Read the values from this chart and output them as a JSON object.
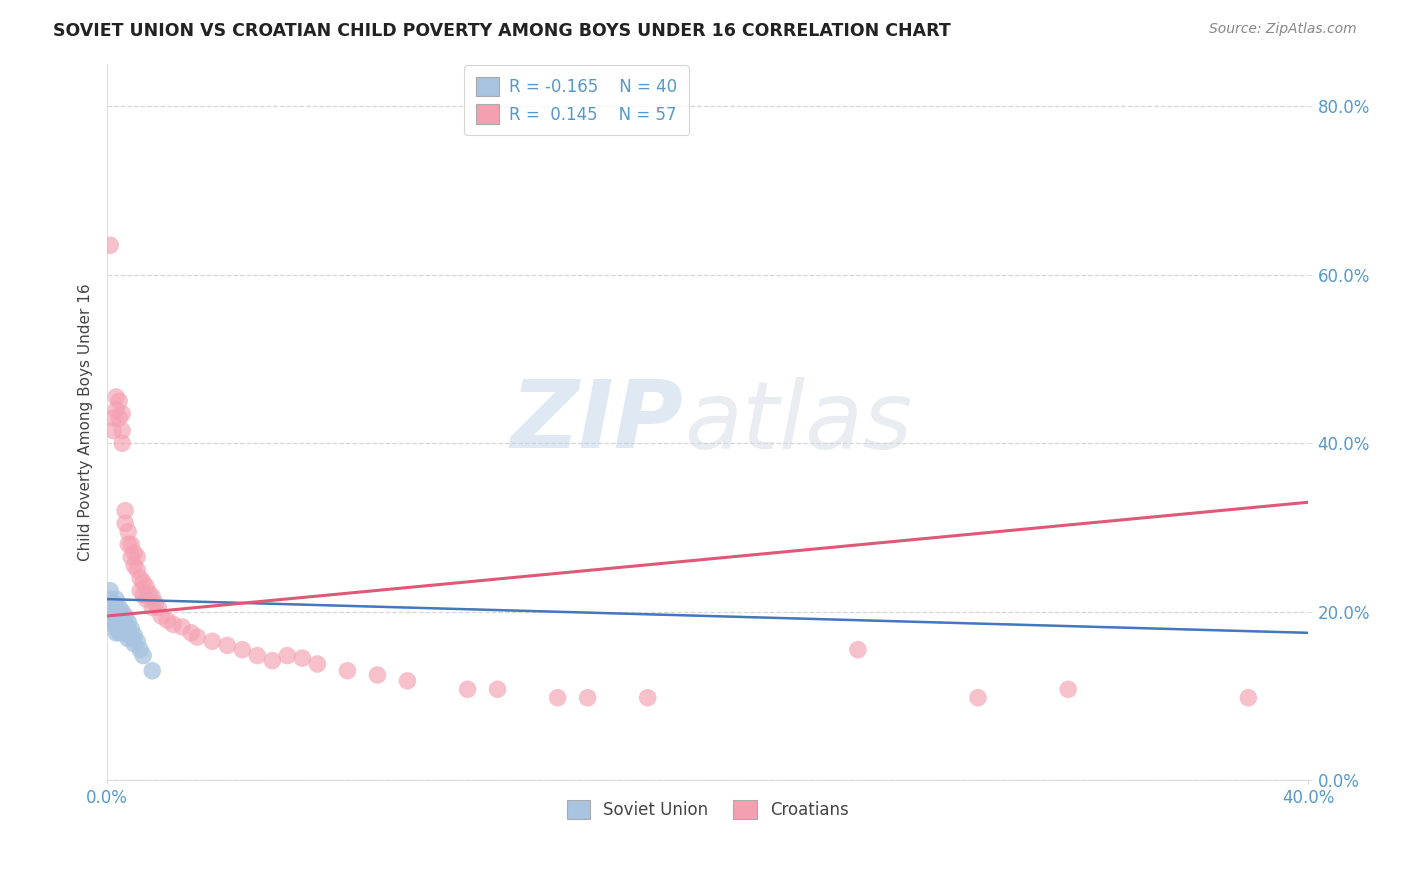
{
  "title": "SOVIET UNION VS CROATIAN CHILD POVERTY AMONG BOYS UNDER 16 CORRELATION CHART",
  "source": "Source: ZipAtlas.com",
  "ylabel": "Child Poverty Among Boys Under 16",
  "y_tick_values": [
    0.0,
    0.2,
    0.4,
    0.6,
    0.8
  ],
  "xlim": [
    0.0,
    0.4
  ],
  "ylim": [
    0.0,
    0.85
  ],
  "soviet_color": "#a8c4e0",
  "croatian_color": "#f4a0b0",
  "soviet_line_color": "#4477bb",
  "soviet_dash_color": "#99bbdd",
  "croatian_line_color": "#e05878",
  "legend_label1": "Soviet Union",
  "legend_label2": "Croatians",
  "watermark_zip": "ZIP",
  "watermark_atlas": "atlas",
  "grid_color": "#cccccc",
  "background_color": "#ffffff",
  "soviet_x": [
    0.001,
    0.001,
    0.001,
    0.001,
    0.002,
    0.002,
    0.002,
    0.002,
    0.002,
    0.002,
    0.003,
    0.003,
    0.003,
    0.003,
    0.003,
    0.003,
    0.003,
    0.004,
    0.004,
    0.004,
    0.004,
    0.004,
    0.005,
    0.005,
    0.005,
    0.005,
    0.006,
    0.006,
    0.006,
    0.007,
    0.007,
    0.007,
    0.008,
    0.008,
    0.009,
    0.009,
    0.01,
    0.011,
    0.012,
    0.015
  ],
  "soviet_y": [
    0.225,
    0.215,
    0.205,
    0.195,
    0.21,
    0.205,
    0.2,
    0.195,
    0.19,
    0.185,
    0.215,
    0.208,
    0.2,
    0.195,
    0.188,
    0.18,
    0.175,
    0.205,
    0.198,
    0.19,
    0.182,
    0.175,
    0.2,
    0.192,
    0.183,
    0.175,
    0.195,
    0.185,
    0.175,
    0.188,
    0.178,
    0.168,
    0.18,
    0.17,
    0.172,
    0.162,
    0.165,
    0.155,
    0.148,
    0.13
  ],
  "croatian_x": [
    0.001,
    0.002,
    0.002,
    0.003,
    0.003,
    0.004,
    0.004,
    0.005,
    0.005,
    0.005,
    0.006,
    0.006,
    0.007,
    0.007,
    0.008,
    0.008,
    0.009,
    0.009,
    0.01,
    0.01,
    0.011,
    0.011,
    0.012,
    0.012,
    0.013,
    0.013,
    0.014,
    0.015,
    0.015,
    0.016,
    0.017,
    0.018,
    0.02,
    0.022,
    0.025,
    0.028,
    0.03,
    0.035,
    0.04,
    0.045,
    0.05,
    0.055,
    0.06,
    0.065,
    0.07,
    0.08,
    0.09,
    0.1,
    0.12,
    0.13,
    0.15,
    0.16,
    0.18,
    0.25,
    0.29,
    0.32,
    0.38
  ],
  "croatian_y": [
    0.635,
    0.43,
    0.415,
    0.455,
    0.44,
    0.45,
    0.43,
    0.435,
    0.415,
    0.4,
    0.32,
    0.305,
    0.295,
    0.28,
    0.28,
    0.265,
    0.27,
    0.255,
    0.265,
    0.25,
    0.24,
    0.225,
    0.235,
    0.22,
    0.23,
    0.215,
    0.222,
    0.218,
    0.205,
    0.21,
    0.205,
    0.195,
    0.19,
    0.185,
    0.182,
    0.175,
    0.17,
    0.165,
    0.16,
    0.155,
    0.148,
    0.142,
    0.148,
    0.145,
    0.138,
    0.13,
    0.125,
    0.118,
    0.108,
    0.108,
    0.098,
    0.098,
    0.098,
    0.155,
    0.098,
    0.108,
    0.098
  ],
  "trend_soviet_x0": 0.0,
  "trend_soviet_x1": 0.4,
  "trend_soviet_y0": 0.215,
  "trend_soviet_y1": 0.175,
  "trend_croatian_x0": 0.0,
  "trend_croatian_x1": 0.4,
  "trend_croatian_y0": 0.195,
  "trend_croatian_y1": 0.33
}
